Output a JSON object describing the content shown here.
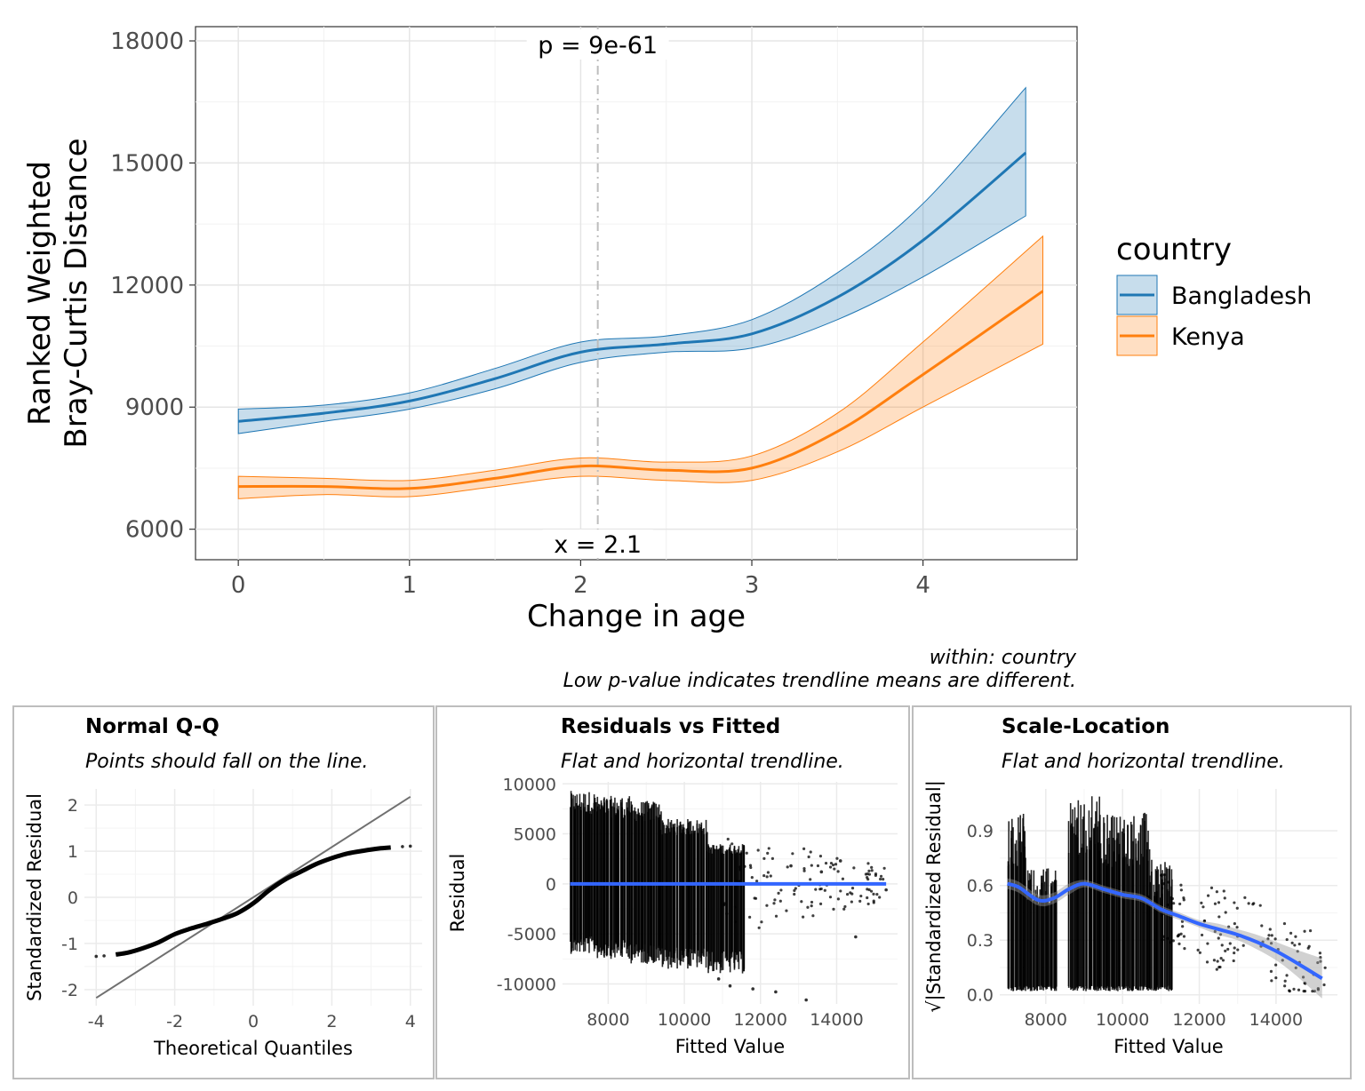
{
  "main": {
    "caption_line1": "within: country",
    "caption_line2": "Low p-value indicates trendline means are different."
  },
  "panels": {
    "qq": {
      "title": "Normal Q-Q",
      "subtitle": "Points should fall on the line."
    },
    "rvf": {
      "title": "Residuals vs Fitted",
      "subtitle": "Flat and horizontal trendline."
    },
    "sl": {
      "title": "Scale-Location",
      "subtitle": "Flat and horizontal trendline."
    }
  },
  "colors": {
    "bangladesh": "#1f77b4",
    "kenya": "#ff7f0e",
    "reference_line": "#bdbdbd",
    "trend_line": "#3366ff",
    "points": "#000000"
  },
  "chart_data": [
    {
      "type": "line",
      "title": "",
      "xlabel": "Change in age",
      "ylabel": "Ranked Weighted Bray-Curtis Distance",
      "xlim": [
        -0.25,
        4.9
      ],
      "ylim": [
        5250,
        18350
      ],
      "x_ticks": [
        0,
        1,
        2,
        3,
        4
      ],
      "y_ticks": [
        6000,
        9000,
        12000,
        15000,
        18000
      ],
      "grid": true,
      "legend": {
        "title": "country",
        "position": "right"
      },
      "annotations": {
        "p_label": "p = 9e-61",
        "x_label": "x = 2.1",
        "vline_x": 2.1
      },
      "series": [
        {
          "name": "Bangladesh",
          "x": [
            0,
            0.5,
            1,
            1.5,
            2,
            2.5,
            3,
            3.5,
            4,
            4.6
          ],
          "values": [
            8650,
            8850,
            9150,
            9700,
            10350,
            10550,
            10800,
            11700,
            13100,
            15250
          ],
          "lower": [
            8350,
            8650,
            8950,
            9450,
            10100,
            10350,
            10450,
            11150,
            12200,
            13700
          ],
          "upper": [
            8950,
            9050,
            9350,
            9950,
            10600,
            10750,
            11150,
            12300,
            14000,
            16850
          ]
        },
        {
          "name": "Kenya",
          "x": [
            0,
            0.5,
            1,
            1.5,
            2,
            2.5,
            3,
            3.5,
            4,
            4.7
          ],
          "values": [
            7050,
            7050,
            7000,
            7250,
            7550,
            7450,
            7500,
            8400,
            9800,
            11850
          ],
          "lower": [
            6750,
            6850,
            6800,
            7050,
            7300,
            7200,
            7200,
            7900,
            9000,
            10550
          ],
          "upper": [
            7300,
            7250,
            7200,
            7450,
            7750,
            7650,
            7800,
            8850,
            10600,
            13200
          ]
        }
      ]
    },
    {
      "type": "scatter",
      "title": "Normal Q-Q",
      "subtitle": "Points should fall on the line.",
      "xlabel": "Theoretical Quantiles",
      "ylabel": "Standardized Residual",
      "xlim": [
        -4.3,
        4.3
      ],
      "ylim": [
        -2.35,
        2.35
      ],
      "x_ticks": [
        -4,
        -2,
        0,
        2,
        4
      ],
      "y_ticks": [
        -2,
        -1,
        0,
        1,
        2
      ],
      "reference_line": {
        "x": [
          -4,
          4
        ],
        "y": [
          -2.18,
          2.18
        ]
      },
      "points": {
        "x": [
          -4,
          -3.8,
          -3.5,
          -3.2,
          -2.8,
          -2.4,
          -2,
          -1.6,
          -1.2,
          -0.8,
          -0.4,
          0,
          0.4,
          0.8,
          1.2,
          1.6,
          2,
          2.4,
          2.8,
          3.2,
          3.5,
          3.8,
          4
        ],
        "y": [
          -1.28,
          -1.27,
          -1.24,
          -1.2,
          -1.1,
          -0.97,
          -0.8,
          -0.68,
          -0.58,
          -0.47,
          -0.34,
          -0.13,
          0.15,
          0.38,
          0.55,
          0.72,
          0.85,
          0.95,
          1.01,
          1.06,
          1.08,
          1.1,
          1.11
        ]
      }
    },
    {
      "type": "scatter",
      "title": "Residuals vs Fitted",
      "subtitle": "Flat and horizontal trendline.",
      "xlabel": "Fitted Value",
      "ylabel": "Residual",
      "xlim": [
        6800,
        15600
      ],
      "ylim": [
        -12000,
        10200
      ],
      "x_ticks": [
        8000,
        10000,
        12000,
        14000
      ],
      "y_ticks": [
        -10000,
        -5000,
        0,
        5000,
        10000
      ],
      "trend": {
        "x": [
          7000,
          15300
        ],
        "y": [
          0,
          0
        ]
      },
      "outliers": {
        "x": [
          11200,
          11800,
          12400,
          13200,
          14500,
          15300,
          12800,
          13600,
          14100,
          10900
        ],
        "y": [
          -10200,
          -10500,
          -10800,
          -11600,
          -5300,
          -600,
          1800,
          1200,
          2300,
          -9500
        ]
      }
    },
    {
      "type": "scatter",
      "title": "Scale-Location",
      "subtitle": "Flat and horizontal trendline.",
      "xlabel": "Fitted Value",
      "ylabel": "√|Standardized Residual|",
      "xlim": [
        6800,
        15600
      ],
      "ylim": [
        -0.05,
        1.13
      ],
      "x_ticks": [
        8000,
        10000,
        12000,
        14000
      ],
      "y_ticks": [
        0.0,
        0.3,
        0.6,
        0.9
      ],
      "y_tick_labels": [
        "0.0",
        "0.3",
        "0.6",
        "0.9"
      ],
      "trend": {
        "x": [
          7000,
          7300,
          7800,
          8200,
          8600,
          9000,
          9500,
          10000,
          10500,
          11000,
          11500,
          12000,
          12500,
          13000,
          13500,
          14000,
          14500,
          15200
        ],
        "y": [
          0.61,
          0.59,
          0.52,
          0.53,
          0.58,
          0.61,
          0.58,
          0.55,
          0.53,
          0.47,
          0.43,
          0.39,
          0.36,
          0.33,
          0.29,
          0.24,
          0.18,
          0.09
        ]
      },
      "band": {
        "upper": [
          0.64,
          0.62,
          0.55,
          0.56,
          0.61,
          0.63,
          0.6,
          0.57,
          0.55,
          0.49,
          0.45,
          0.41,
          0.39,
          0.36,
          0.33,
          0.29,
          0.25,
          0.2
        ],
        "lower": [
          0.58,
          0.56,
          0.49,
          0.5,
          0.55,
          0.59,
          0.56,
          0.53,
          0.51,
          0.45,
          0.41,
          0.37,
          0.33,
          0.3,
          0.25,
          0.19,
          0.11,
          -0.02
        ]
      }
    }
  ]
}
